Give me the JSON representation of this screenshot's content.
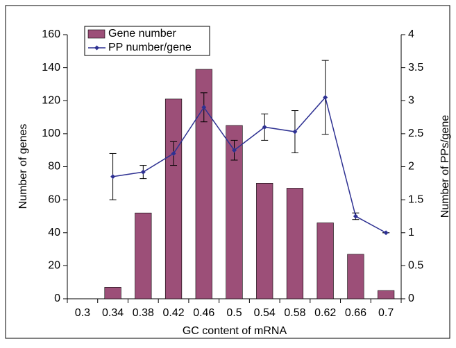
{
  "chart_data": {
    "type": "bar_line",
    "x_label": "GC content of mRNA",
    "y_label": "Number of genes",
    "y2_label": "Number of PPs/gene",
    "categories": [
      "0.3",
      "0.34",
      "0.38",
      "0.42",
      "0.46",
      "0.5",
      "0.54",
      "0.58",
      "0.62",
      "0.66",
      "0.7"
    ],
    "series": [
      {
        "name": "Gene number",
        "color": "#9c4f78",
        "type": "bar",
        "values": [
          0,
          7,
          52,
          121,
          139,
          105,
          70,
          67,
          46,
          27,
          5
        ]
      },
      {
        "name": "PP number/gene",
        "color": "#2e3192",
        "type": "line",
        "axis": "y2",
        "values": [
          null,
          1.85,
          1.92,
          2.2,
          2.9,
          2.25,
          2.6,
          2.53,
          3.05,
          1.25,
          1.0
        ],
        "errors": [
          null,
          0.35,
          0.1,
          0.18,
          0.22,
          0.15,
          0.2,
          0.32,
          0.56,
          0.05,
          0
        ]
      }
    ],
    "ylim": [
      0,
      160
    ],
    "yticks": [
      0,
      20,
      40,
      60,
      80,
      100,
      120,
      140,
      160
    ],
    "y2lim": [
      0,
      4
    ],
    "y2ticks": [
      0,
      0.5,
      1,
      1.5,
      2,
      2.5,
      3,
      3.5,
      4
    ],
    "legend": "top-left"
  }
}
